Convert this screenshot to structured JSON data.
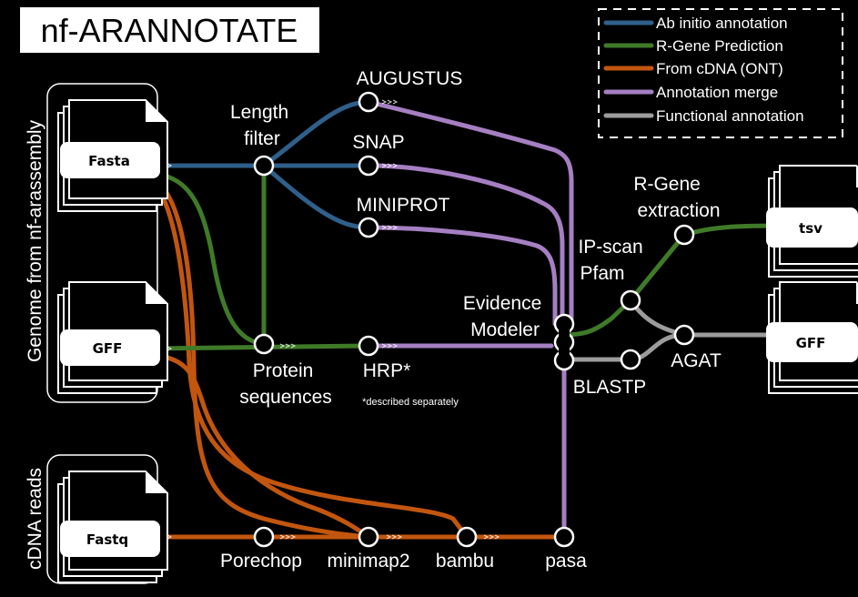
{
  "title": "nf-ARANNOTATE",
  "side_labels": {
    "genome": "Genome from nf-arassembly",
    "cdna": "cDNA reads"
  },
  "legend": [
    {
      "label": "Ab initio annotation",
      "color": "#2f5f8a"
    },
    {
      "label": "R-Gene Prediction",
      "color": "#3f7a28"
    },
    {
      "label": "From cDNA (ONT)",
      "color": "#c2560f"
    },
    {
      "label": "Annotation merge",
      "color": "#a57fc2"
    },
    {
      "label": "Functional annotation",
      "color": "#9c9c9c"
    }
  ],
  "documents": {
    "fasta": "Fasta",
    "gff_in": "GFF",
    "fastq": "Fastq",
    "tsv": "tsv",
    "gff_out": "GFF"
  },
  "nodes": {
    "length_filter": "Length\nfilter",
    "augustus": "AUGUSTUS",
    "snap": "SNAP",
    "miniprot": "MINIPROT",
    "protein_sequences": "Protein\nsequences",
    "hrp": "HRP*",
    "hrp_note": "*described separately",
    "evidence_modeler": "Evidence\nModeler",
    "ipscan_pfam": "IP-scan\nPfam",
    "rgene_extraction": "R-Gene\nextraction",
    "agat": "AGAT",
    "blastp": "BLASTP",
    "porechop": "Porechop",
    "minimap2": "minimap2",
    "bambu": "bambu",
    "pasa": "pasa"
  }
}
